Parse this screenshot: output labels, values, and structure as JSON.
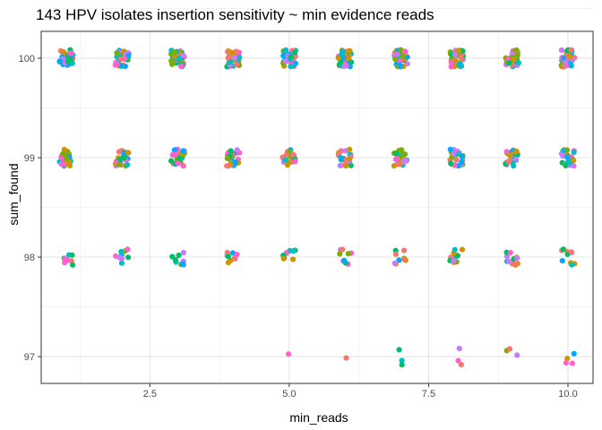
{
  "chart_data": {
    "type": "scatter",
    "title": "143 HPV isolates insertion sensitivity ~ min evidence reads",
    "xlabel": "min_reads",
    "ylabel": "sum_found",
    "xlim": [
      0.55,
      10.45
    ],
    "ylim": [
      96.73,
      100.27
    ],
    "x_ticks": [
      2.5,
      5.0,
      7.5,
      10.0
    ],
    "x_tick_labels": [
      "2.5",
      "5.0",
      "7.5",
      "10.0"
    ],
    "y_ticks": [
      97,
      98,
      99,
      100
    ],
    "y_tick_labels": [
      "97",
      "98",
      "99",
      "100"
    ],
    "grid": true,
    "jitter": true,
    "legend": "none",
    "palette": [
      "#f8766d",
      "#cd9600",
      "#7cae00",
      "#00be67",
      "#00bfc4",
      "#00a9ff",
      "#c77cff",
      "#ff61cc"
    ],
    "x": [
      1,
      2,
      3,
      4,
      5,
      6,
      7,
      8,
      9,
      10
    ],
    "points": [
      {
        "x": 1,
        "y": 100,
        "n": 40
      },
      {
        "x": 1,
        "y": 99,
        "n": 26
      },
      {
        "x": 1,
        "y": 98,
        "n": 8
      },
      {
        "x": 2,
        "y": 100,
        "n": 40
      },
      {
        "x": 2,
        "y": 99,
        "n": 24
      },
      {
        "x": 2,
        "y": 98,
        "n": 9
      },
      {
        "x": 3,
        "y": 100,
        "n": 38
      },
      {
        "x": 3,
        "y": 99,
        "n": 24
      },
      {
        "x": 3,
        "y": 98,
        "n": 9
      },
      {
        "x": 4,
        "y": 100,
        "n": 38
      },
      {
        "x": 4,
        "y": 99,
        "n": 28
      },
      {
        "x": 4,
        "y": 98,
        "n": 9
      },
      {
        "x": 5,
        "y": 100,
        "n": 40
      },
      {
        "x": 5,
        "y": 99,
        "n": 26
      },
      {
        "x": 5,
        "y": 98,
        "n": 9
      },
      {
        "x": 5,
        "y": 97,
        "n": 1
      },
      {
        "x": 6,
        "y": 100,
        "n": 38
      },
      {
        "x": 6,
        "y": 99,
        "n": 26
      },
      {
        "x": 6,
        "y": 98,
        "n": 9
      },
      {
        "x": 6,
        "y": 97,
        "n": 1
      },
      {
        "x": 7,
        "y": 100,
        "n": 40
      },
      {
        "x": 7,
        "y": 99,
        "n": 28
      },
      {
        "x": 7,
        "y": 98,
        "n": 9
      },
      {
        "x": 7,
        "y": 97,
        "n": 3
      },
      {
        "x": 8,
        "y": 100,
        "n": 38
      },
      {
        "x": 8,
        "y": 99,
        "n": 28
      },
      {
        "x": 8,
        "y": 98,
        "n": 10
      },
      {
        "x": 8,
        "y": 97,
        "n": 3
      },
      {
        "x": 9,
        "y": 100,
        "n": 38
      },
      {
        "x": 9,
        "y": 99,
        "n": 28
      },
      {
        "x": 9,
        "y": 98,
        "n": 12
      },
      {
        "x": 9,
        "y": 97,
        "n": 3
      },
      {
        "x": 10,
        "y": 100,
        "n": 38
      },
      {
        "x": 10,
        "y": 99,
        "n": 26
      },
      {
        "x": 10,
        "y": 98,
        "n": 11
      },
      {
        "x": 10,
        "y": 97,
        "n": 4
      }
    ]
  }
}
